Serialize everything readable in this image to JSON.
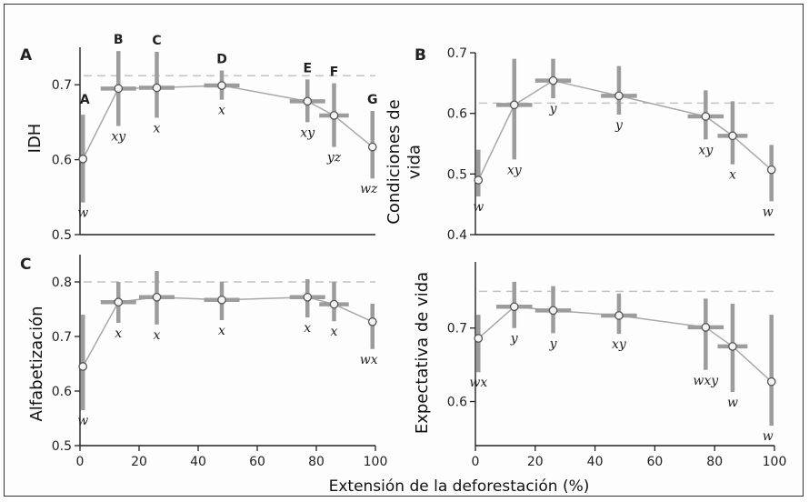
{
  "xlabel": "Extensión de la deforestación (%)",
  "chart_data": [
    {
      "type": "line",
      "panel": "A",
      "ylabel": "IDH",
      "xlim": [
        0,
        100
      ],
      "ylim": [
        0.5,
        0.75
      ],
      "yticks": [
        0.5,
        0.6,
        0.7
      ],
      "xticks": [],
      "reference": 0.712,
      "points": [
        {
          "x": 1,
          "y": 0.601,
          "lo": 0.543,
          "hi": 0.66,
          "xlo": 1,
          "xhi": 1,
          "group": "w",
          "letter": "A"
        },
        {
          "x": 13,
          "y": 0.695,
          "lo": 0.645,
          "hi": 0.745,
          "xlo": 7,
          "xhi": 19,
          "group": "xy",
          "letter": "B"
        },
        {
          "x": 26,
          "y": 0.696,
          "lo": 0.656,
          "hi": 0.744,
          "xlo": 20,
          "xhi": 32,
          "group": "x",
          "letter": "C"
        },
        {
          "x": 48,
          "y": 0.699,
          "lo": 0.68,
          "hi": 0.719,
          "xlo": 42,
          "xhi": 54,
          "group": "x",
          "letter": "D"
        },
        {
          "x": 77,
          "y": 0.678,
          "lo": 0.65,
          "hi": 0.707,
          "xlo": 71,
          "xhi": 83,
          "group": "xy",
          "letter": "E"
        },
        {
          "x": 86,
          "y": 0.659,
          "lo": 0.617,
          "hi": 0.702,
          "xlo": 81,
          "xhi": 91,
          "group": "yz",
          "letter": "F"
        },
        {
          "x": 99,
          "y": 0.617,
          "lo": 0.575,
          "hi": 0.665,
          "xlo": 99,
          "xhi": 99,
          "group": "wz",
          "letter": "G"
        }
      ]
    },
    {
      "type": "line",
      "panel": "B",
      "ylabel": "Condiciones de vida",
      "xlim": [
        0,
        100
      ],
      "ylim": [
        0.4,
        0.7
      ],
      "yticks": [
        0.4,
        0.5,
        0.6,
        0.7
      ],
      "xticks": [],
      "reference": 0.617,
      "points": [
        {
          "x": 1,
          "y": 0.49,
          "lo": 0.463,
          "hi": 0.54,
          "xlo": 1,
          "xhi": 1,
          "group": "w"
        },
        {
          "x": 13,
          "y": 0.614,
          "lo": 0.524,
          "hi": 0.69,
          "xlo": 7,
          "xhi": 19,
          "group": "xy"
        },
        {
          "x": 26,
          "y": 0.654,
          "lo": 0.625,
          "hi": 0.69,
          "xlo": 20,
          "xhi": 32,
          "group": "y"
        },
        {
          "x": 48,
          "y": 0.629,
          "lo": 0.598,
          "hi": 0.678,
          "xlo": 42,
          "xhi": 54,
          "group": "y"
        },
        {
          "x": 77,
          "y": 0.595,
          "lo": 0.557,
          "hi": 0.638,
          "xlo": 71,
          "xhi": 83,
          "group": "xy"
        },
        {
          "x": 86,
          "y": 0.563,
          "lo": 0.516,
          "hi": 0.62,
          "xlo": 81,
          "xhi": 91,
          "group": "x"
        },
        {
          "x": 99,
          "y": 0.507,
          "lo": 0.455,
          "hi": 0.548,
          "xlo": 99,
          "xhi": 99,
          "group": "w"
        }
      ]
    },
    {
      "type": "line",
      "panel": "C",
      "ylabel": "Alfabetización",
      "xlim": [
        0,
        100
      ],
      "ylim": [
        0.5,
        0.85
      ],
      "yticks": [
        0.5,
        0.6,
        0.7,
        0.8
      ],
      "xticks": [
        0,
        20,
        40,
        60,
        80,
        100
      ],
      "reference": 0.8,
      "points": [
        {
          "x": 1,
          "y": 0.645,
          "lo": 0.565,
          "hi": 0.74,
          "xlo": 1,
          "xhi": 1,
          "group": "w"
        },
        {
          "x": 13,
          "y": 0.763,
          "lo": 0.725,
          "hi": 0.8,
          "xlo": 7,
          "xhi": 19,
          "group": "x"
        },
        {
          "x": 26,
          "y": 0.772,
          "lo": 0.722,
          "hi": 0.82,
          "xlo": 20,
          "xhi": 32,
          "group": "x"
        },
        {
          "x": 48,
          "y": 0.767,
          "lo": 0.73,
          "hi": 0.8,
          "xlo": 42,
          "xhi": 54,
          "group": "x"
        },
        {
          "x": 77,
          "y": 0.772,
          "lo": 0.735,
          "hi": 0.805,
          "xlo": 71,
          "xhi": 83,
          "group": "x"
        },
        {
          "x": 86,
          "y": 0.759,
          "lo": 0.728,
          "hi": 0.8,
          "xlo": 81,
          "xhi": 91,
          "group": "x"
        },
        {
          "x": 99,
          "y": 0.727,
          "lo": 0.677,
          "hi": 0.76,
          "xlo": 99,
          "xhi": 99,
          "group": "wx"
        }
      ]
    },
    {
      "type": "line",
      "panel": "",
      "ylabel": "Expectativa de vida",
      "xlim": [
        0,
        100
      ],
      "ylim": [
        0.54,
        0.79
      ],
      "yticks": [
        0.6,
        0.7
      ],
      "xticks": [
        0,
        20,
        40,
        60,
        80,
        100
      ],
      "reference": 0.75,
      "points": [
        {
          "x": 1,
          "y": 0.686,
          "lo": 0.64,
          "hi": 0.718,
          "xlo": 1,
          "xhi": 1,
          "group": "wx"
        },
        {
          "x": 13,
          "y": 0.729,
          "lo": 0.7,
          "hi": 0.763,
          "xlo": 7,
          "xhi": 19,
          "group": "y"
        },
        {
          "x": 26,
          "y": 0.724,
          "lo": 0.693,
          "hi": 0.757,
          "xlo": 20,
          "xhi": 32,
          "group": "y"
        },
        {
          "x": 48,
          "y": 0.717,
          "lo": 0.692,
          "hi": 0.747,
          "xlo": 42,
          "xhi": 54,
          "group": "xy"
        },
        {
          "x": 77,
          "y": 0.701,
          "lo": 0.643,
          "hi": 0.74,
          "xlo": 71,
          "xhi": 83,
          "group": "wxy"
        },
        {
          "x": 86,
          "y": 0.675,
          "lo": 0.613,
          "hi": 0.733,
          "xlo": 81,
          "xhi": 91,
          "group": "w"
        },
        {
          "x": 99,
          "y": 0.627,
          "lo": 0.567,
          "hi": 0.718,
          "xlo": 99,
          "xhi": 99,
          "group": "w"
        }
      ]
    }
  ]
}
